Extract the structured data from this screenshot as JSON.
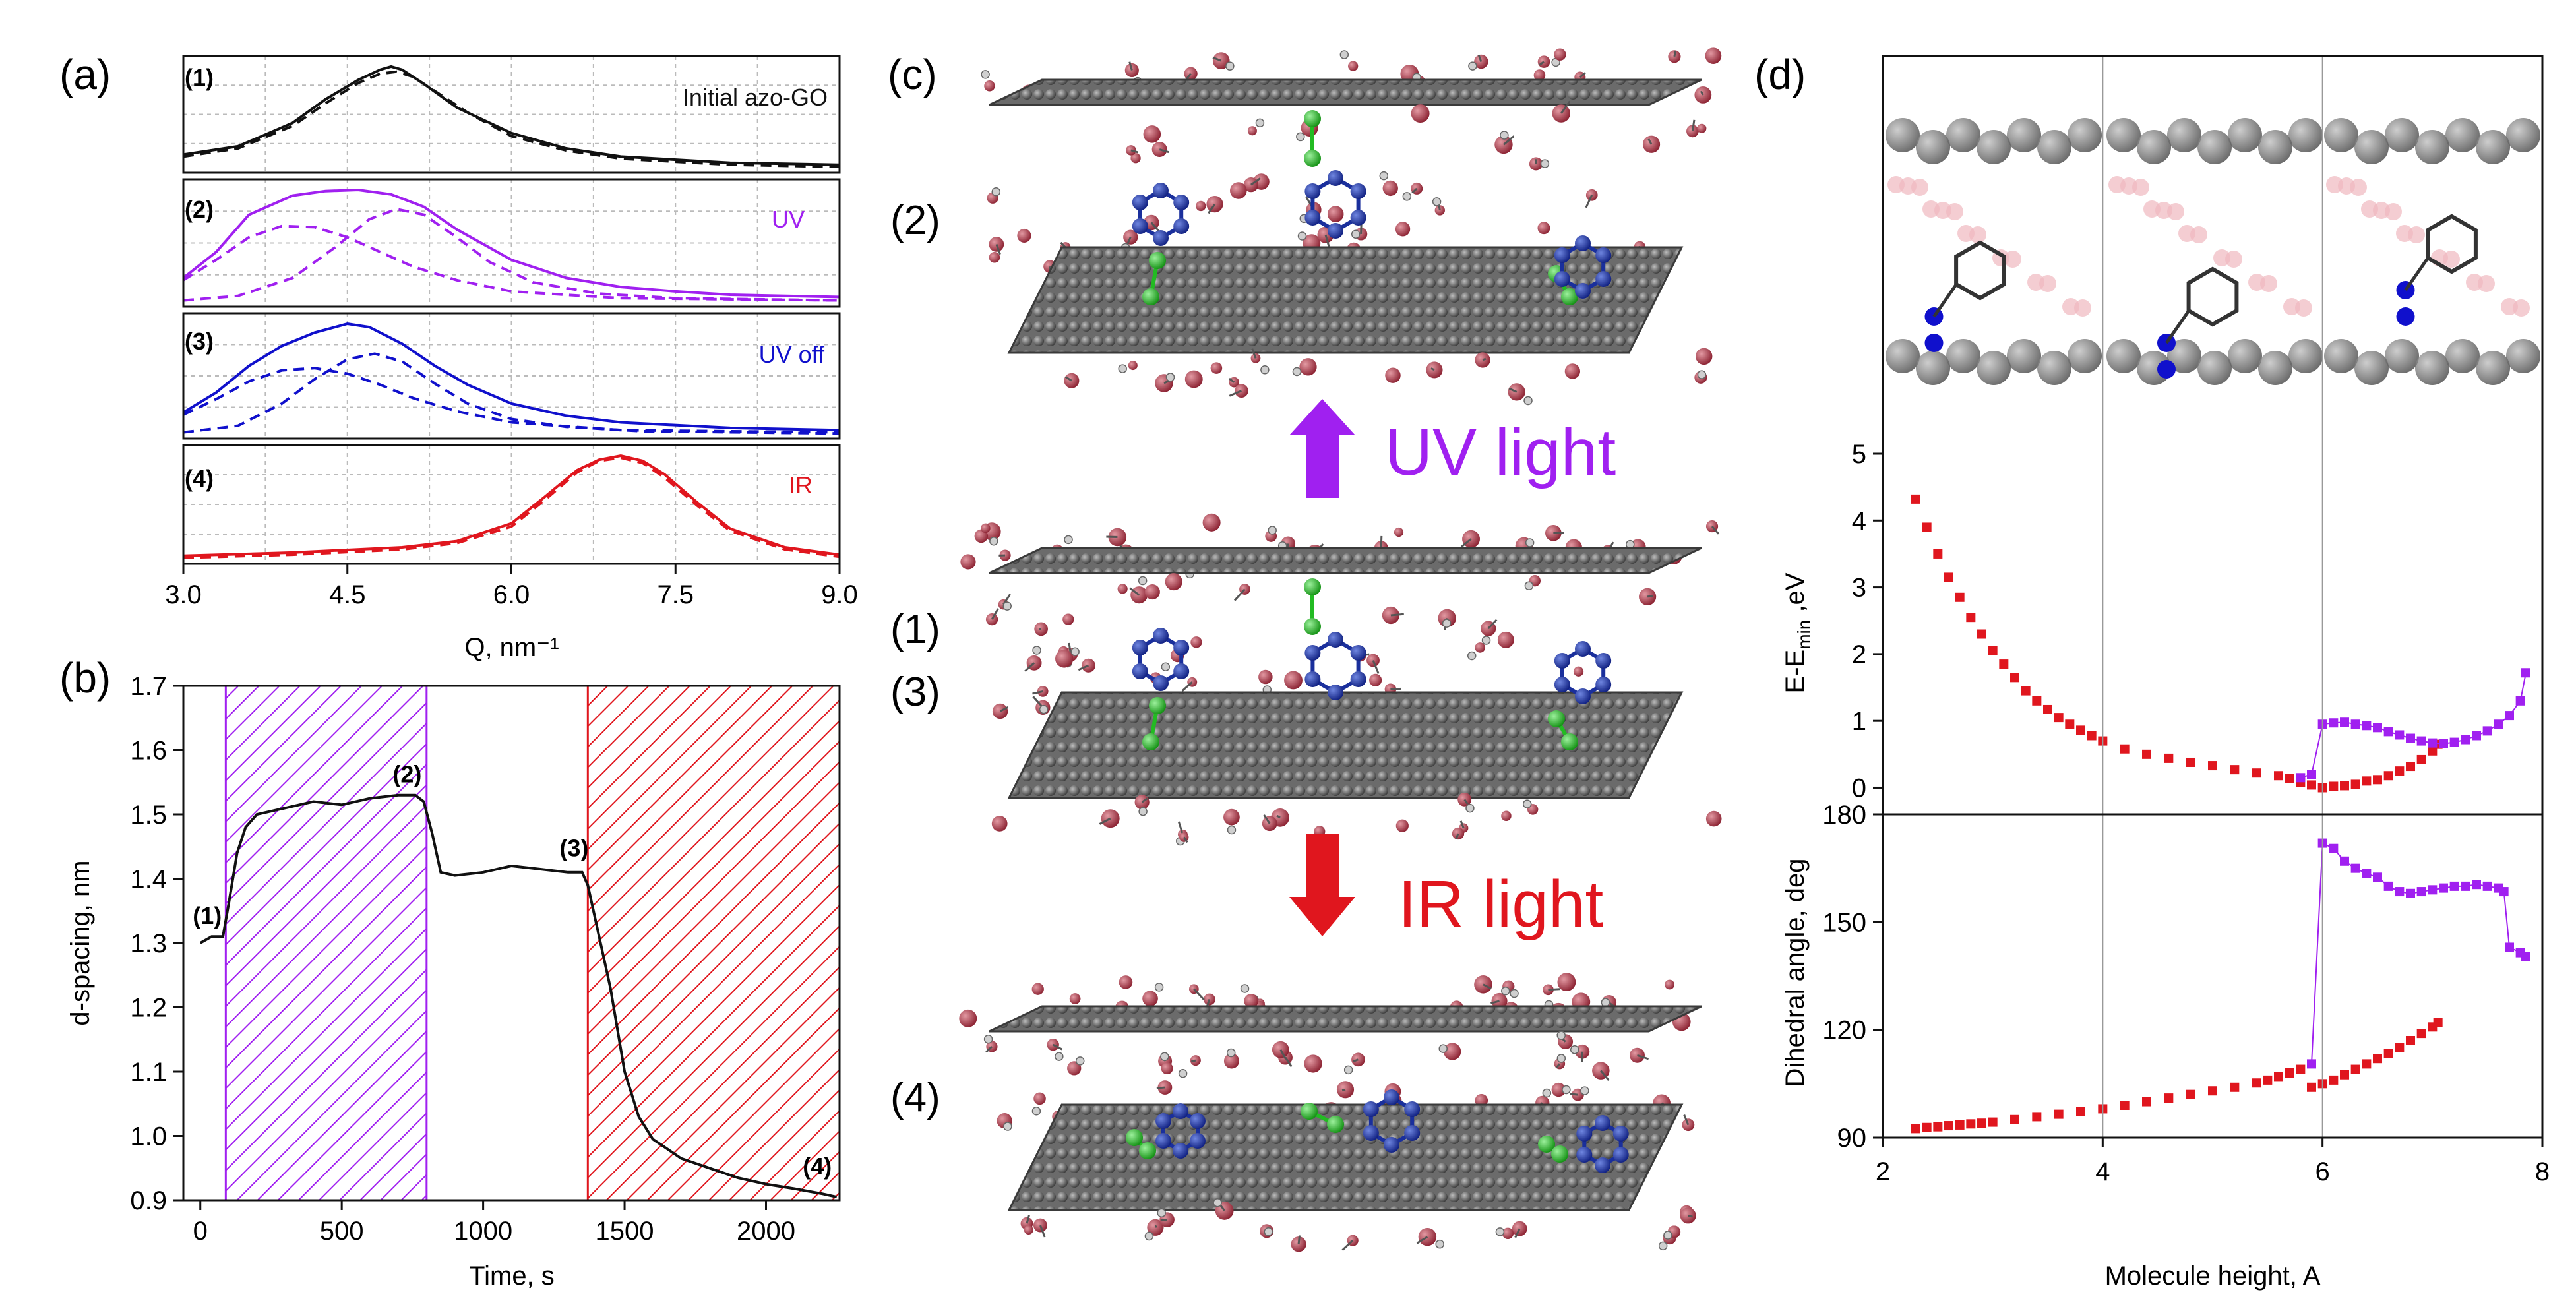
{
  "panel_labels": {
    "a": "(a)",
    "b": "(b)",
    "c": "(c)",
    "d": "(d)"
  },
  "colors": {
    "black": "#111111",
    "violet": "#a020f0",
    "blue": "#1010cc",
    "red": "#e0161e",
    "grid": "#bbbbbb",
    "green": "#22bb22",
    "navy": "#1a2f9c",
    "carbon": "#5a5a5a",
    "oxygen": "#a0303e"
  },
  "chart_data": [
    {
      "id": "a",
      "type": "line",
      "xlabel": "Q, nm⁻¹",
      "xlim": [
        3.0,
        9.0
      ],
      "xticks": [
        "3.0",
        "4.5",
        "6.0",
        "7.5",
        "9.0"
      ],
      "subpanels": [
        {
          "tag": "(1)",
          "label": "Initial azo-GO",
          "color": "black",
          "series": [
            {
              "name": "measured",
              "style": "solid",
              "x": [
                3.0,
                3.5,
                4.0,
                4.3,
                4.6,
                4.8,
                4.9,
                5.0,
                5.2,
                5.5,
                6.0,
                6.5,
                7.0,
                8.0,
                9.0
              ],
              "y": [
                0.14,
                0.22,
                0.45,
                0.68,
                0.87,
                0.97,
                1.0,
                0.97,
                0.83,
                0.6,
                0.35,
                0.2,
                0.12,
                0.06,
                0.04
              ]
            },
            {
              "name": "fit",
              "style": "dashed",
              "x": [
                3.0,
                3.5,
                4.0,
                4.3,
                4.6,
                4.8,
                4.95,
                5.1,
                5.3,
                5.6,
                6.0,
                6.5,
                7.0,
                8.0,
                9.0
              ],
              "y": [
                0.12,
                0.2,
                0.42,
                0.64,
                0.84,
                0.93,
                0.95,
                0.9,
                0.76,
                0.55,
                0.32,
                0.18,
                0.1,
                0.04,
                0.02
              ]
            }
          ]
        },
        {
          "tag": "(2)",
          "label": "UV",
          "color": "violet",
          "series": [
            {
              "name": "measured",
              "style": "solid",
              "x": [
                3.0,
                3.3,
                3.6,
                4.0,
                4.3,
                4.6,
                4.9,
                5.2,
                5.5,
                6.0,
                6.5,
                7.0,
                7.5,
                8.0,
                9.0
              ],
              "y": [
                0.22,
                0.45,
                0.78,
                0.95,
                0.99,
                1.0,
                0.96,
                0.85,
                0.65,
                0.38,
                0.22,
                0.14,
                0.1,
                0.07,
                0.05
              ]
            },
            {
              "name": "peak-1",
              "style": "dashed",
              "x": [
                3.0,
                3.3,
                3.6,
                3.9,
                4.2,
                4.5,
                4.8,
                5.1,
                5.5,
                6.0,
                7.0,
                9.0
              ],
              "y": [
                0.2,
                0.38,
                0.58,
                0.68,
                0.67,
                0.58,
                0.45,
                0.32,
                0.2,
                0.1,
                0.04,
                0.02
              ]
            },
            {
              "name": "peak-2",
              "style": "dashed",
              "x": [
                3.0,
                3.5,
                4.0,
                4.4,
                4.7,
                4.95,
                5.2,
                5.5,
                5.8,
                6.2,
                6.8,
                7.5,
                9.0
              ],
              "y": [
                0.02,
                0.06,
                0.22,
                0.5,
                0.74,
                0.83,
                0.78,
                0.58,
                0.36,
                0.18,
                0.08,
                0.04,
                0.02
              ]
            }
          ]
        },
        {
          "tag": "(3)",
          "label": "UV off",
          "color": "blue",
          "series": [
            {
              "name": "measured",
              "style": "solid",
              "x": [
                3.0,
                3.3,
                3.6,
                3.9,
                4.2,
                4.5,
                4.7,
                5.0,
                5.3,
                5.6,
                6.0,
                6.5,
                7.0,
                8.0,
                9.0
              ],
              "y": [
                0.2,
                0.38,
                0.62,
                0.8,
                0.92,
                1.0,
                0.97,
                0.82,
                0.62,
                0.45,
                0.28,
                0.17,
                0.11,
                0.06,
                0.04
              ]
            },
            {
              "name": "peak-1",
              "style": "dashed",
              "x": [
                3.0,
                3.3,
                3.6,
                3.9,
                4.2,
                4.5,
                4.8,
                5.1,
                5.5,
                6.0,
                7.0,
                9.0
              ],
              "y": [
                0.18,
                0.32,
                0.48,
                0.58,
                0.6,
                0.55,
                0.45,
                0.33,
                0.21,
                0.11,
                0.04,
                0.02
              ]
            },
            {
              "name": "peak-2",
              "style": "dashed",
              "x": [
                3.0,
                3.5,
                3.9,
                4.2,
                4.5,
                4.75,
                5.0,
                5.3,
                5.6,
                6.0,
                6.5,
                7.2,
                9.0
              ],
              "y": [
                0.02,
                0.08,
                0.28,
                0.5,
                0.68,
                0.73,
                0.66,
                0.46,
                0.28,
                0.14,
                0.07,
                0.03,
                0.01
              ]
            }
          ]
        },
        {
          "tag": "(4)",
          "label": "IR",
          "color": "red",
          "series": [
            {
              "name": "measured",
              "style": "solid",
              "x": [
                3.0,
                4.0,
                5.0,
                5.5,
                6.0,
                6.3,
                6.6,
                6.8,
                7.0,
                7.2,
                7.4,
                7.7,
                8.0,
                8.5,
                9.0
              ],
              "y": [
                0.04,
                0.07,
                0.12,
                0.18,
                0.35,
                0.6,
                0.86,
                0.96,
                1.0,
                0.95,
                0.82,
                0.55,
                0.3,
                0.12,
                0.05
              ]
            },
            {
              "name": "fit",
              "style": "dashed",
              "x": [
                3.0,
                4.0,
                5.0,
                5.5,
                6.0,
                6.3,
                6.6,
                6.8,
                7.0,
                7.2,
                7.4,
                7.7,
                8.0,
                8.5,
                9.0
              ],
              "y": [
                0.02,
                0.05,
                0.1,
                0.16,
                0.32,
                0.57,
                0.84,
                0.95,
                0.98,
                0.93,
                0.79,
                0.52,
                0.28,
                0.1,
                0.03
              ]
            }
          ]
        }
      ]
    },
    {
      "id": "b",
      "type": "line",
      "xlabel": "Time, s",
      "ylabel": "d-spacing, nm",
      "xlim": [
        -60,
        2260
      ],
      "ylim": [
        0.9,
        1.7
      ],
      "xticks": [
        0,
        500,
        1000,
        1500,
        2000
      ],
      "xtick_labels": [
        "0",
        "500",
        "1000",
        "1500",
        "2000"
      ],
      "yticks": [
        0.9,
        1.0,
        1.1,
        1.2,
        1.3,
        1.4,
        1.5,
        1.6,
        1.7
      ],
      "ytick_labels": [
        "0.9",
        "1.0",
        "1.1",
        "1.2",
        "1.3",
        "1.4",
        "1.5",
        "1.6",
        "1.7"
      ],
      "shaded_regions": [
        {
          "x0": 90,
          "x1": 800,
          "color": "violet",
          "label": "UV"
        },
        {
          "x0": 1370,
          "x1": 2260,
          "color": "red",
          "label": "IR"
        }
      ],
      "series": [
        {
          "name": "d-spacing",
          "color": "black",
          "x": [
            0,
            40,
            80,
            100,
            130,
            160,
            200,
            300,
            400,
            500,
            600,
            700,
            760,
            790,
            820,
            850,
            900,
            1000,
            1100,
            1200,
            1300,
            1350,
            1370,
            1400,
            1450,
            1500,
            1550,
            1600,
            1650,
            1700,
            1800,
            1900,
            2000,
            2100,
            2200,
            2250
          ],
          "y": [
            1.3,
            1.31,
            1.31,
            1.36,
            1.44,
            1.48,
            1.5,
            1.51,
            1.52,
            1.515,
            1.525,
            1.53,
            1.53,
            1.52,
            1.47,
            1.41,
            1.405,
            1.41,
            1.42,
            1.415,
            1.41,
            1.41,
            1.39,
            1.33,
            1.23,
            1.1,
            1.03,
            0.995,
            0.98,
            0.965,
            0.95,
            0.935,
            0.925,
            0.918,
            0.91,
            0.905
          ]
        }
      ],
      "annotations": [
        {
          "text": "(1)",
          "x": 20,
          "y": 1.33
        },
        {
          "text": "(2)",
          "x": 680,
          "y": 1.55
        },
        {
          "text": "(3)",
          "x": 1270,
          "y": 1.435
        },
        {
          "text": "(4)",
          "x": 2130,
          "y": 0.94
        }
      ]
    },
    {
      "id": "d-energy",
      "type": "scatter",
      "ylabel": "E-E",
      "ylabel_sub": "min",
      "ylabel_tail": " ,eV",
      "xlim": [
        2,
        8
      ],
      "ylim": [
        -0.4,
        5
      ],
      "yticks": [
        0,
        1,
        2,
        3,
        4,
        5
      ],
      "ytick_labels": [
        "0",
        "1",
        "2",
        "3",
        "4",
        "5"
      ],
      "series": [
        {
          "name": "red",
          "color": "red",
          "x": [
            2.3,
            2.4,
            2.5,
            2.6,
            2.7,
            2.8,
            2.9,
            3.0,
            3.1,
            3.2,
            3.3,
            3.4,
            3.5,
            3.6,
            3.7,
            3.8,
            3.9,
            4.0,
            4.2,
            4.4,
            4.6,
            4.8,
            5.0,
            5.2,
            5.4,
            5.6,
            5.7,
            5.8,
            5.9,
            6.0,
            6.1,
            6.2,
            6.3,
            6.4,
            6.5,
            6.6,
            6.7,
            6.8,
            6.9,
            7.0,
            7.05
          ],
          "y": [
            4.32,
            3.9,
            3.5,
            3.15,
            2.85,
            2.55,
            2.3,
            2.05,
            1.85,
            1.65,
            1.45,
            1.3,
            1.17,
            1.05,
            0.95,
            0.86,
            0.78,
            0.7,
            0.58,
            0.5,
            0.44,
            0.38,
            0.33,
            0.27,
            0.22,
            0.18,
            0.14,
            0.08,
            0.04,
            0.0,
            0.02,
            0.03,
            0.05,
            0.1,
            0.12,
            0.18,
            0.25,
            0.32,
            0.42,
            0.55,
            0.65
          ]
        },
        {
          "name": "violet",
          "color": "violet",
          "x": [
            5.8,
            5.9,
            6.0,
            6.1,
            6.2,
            6.3,
            6.4,
            6.5,
            6.6,
            6.7,
            6.8,
            6.9,
            7.0,
            7.1,
            7.2,
            7.3,
            7.4,
            7.5,
            7.6,
            7.7,
            7.8,
            7.85
          ],
          "y": [
            0.15,
            0.2,
            0.95,
            0.97,
            0.98,
            0.95,
            0.93,
            0.9,
            0.84,
            0.79,
            0.74,
            0.7,
            0.67,
            0.66,
            0.68,
            0.72,
            0.78,
            0.85,
            0.95,
            1.08,
            1.3,
            1.72
          ]
        }
      ]
    },
    {
      "id": "d-dihedral",
      "type": "scatter",
      "xlabel": "Molecule height, A",
      "ylabel": "Dihedral angle, deg",
      "xlim": [
        2,
        8
      ],
      "ylim": [
        90,
        180
      ],
      "xticks": [
        2,
        4,
        6,
        8
      ],
      "xtick_labels": [
        "2",
        "4",
        "6",
        "8"
      ],
      "yticks": [
        90,
        120,
        150,
        180
      ],
      "ytick_labels": [
        "90",
        "120",
        "150",
        "180"
      ],
      "series": [
        {
          "name": "red",
          "color": "red",
          "x": [
            2.3,
            2.4,
            2.5,
            2.6,
            2.7,
            2.8,
            2.9,
            3.0,
            3.2,
            3.4,
            3.6,
            3.8,
            4.0,
            4.2,
            4.4,
            4.6,
            4.8,
            5.0,
            5.2,
            5.4,
            5.5,
            5.6,
            5.7,
            5.8,
            5.9,
            6.0,
            6.1,
            6.2,
            6.3,
            6.4,
            6.5,
            6.6,
            6.7,
            6.8,
            6.9,
            7.0,
            7.05
          ],
          "y": [
            92.5,
            92.8,
            93.0,
            93.3,
            93.5,
            93.8,
            94.0,
            94.3,
            95.0,
            95.8,
            96.5,
            97.3,
            98.0,
            99.0,
            100.0,
            101.0,
            102.0,
            103.0,
            104.0,
            105.2,
            106.0,
            107.0,
            108.0,
            109.0,
            104.0,
            105.0,
            106.0,
            107.5,
            109.0,
            110.5,
            112.0,
            113.5,
            115.0,
            117.0,
            119.0,
            120.8,
            122.0
          ]
        },
        {
          "name": "violet",
          "color": "violet",
          "x": [
            5.9,
            6.0,
            6.1,
            6.2,
            6.3,
            6.4,
            6.5,
            6.6,
            6.7,
            6.8,
            6.9,
            7.0,
            7.1,
            7.2,
            7.3,
            7.4,
            7.5,
            7.6,
            7.65,
            7.7,
            7.8,
            7.85
          ],
          "y": [
            110.5,
            172.0,
            170.5,
            167.0,
            165.0,
            163.5,
            162.5,
            160.0,
            158.5,
            158.0,
            158.5,
            159.0,
            159.5,
            160.0,
            160.0,
            160.5,
            160.0,
            159.5,
            158.5,
            143.0,
            141.5,
            140.5
          ]
        }
      ]
    }
  ],
  "panel_c": {
    "labels": [
      "(2)",
      "(1)",
      "(3)",
      "(4)"
    ],
    "uv_arrow_text": "UV light",
    "ir_arrow_text": "IR light"
  },
  "panel_d_snapshots": [
    "snapshot-1",
    "snapshot-2",
    "snapshot-3"
  ]
}
